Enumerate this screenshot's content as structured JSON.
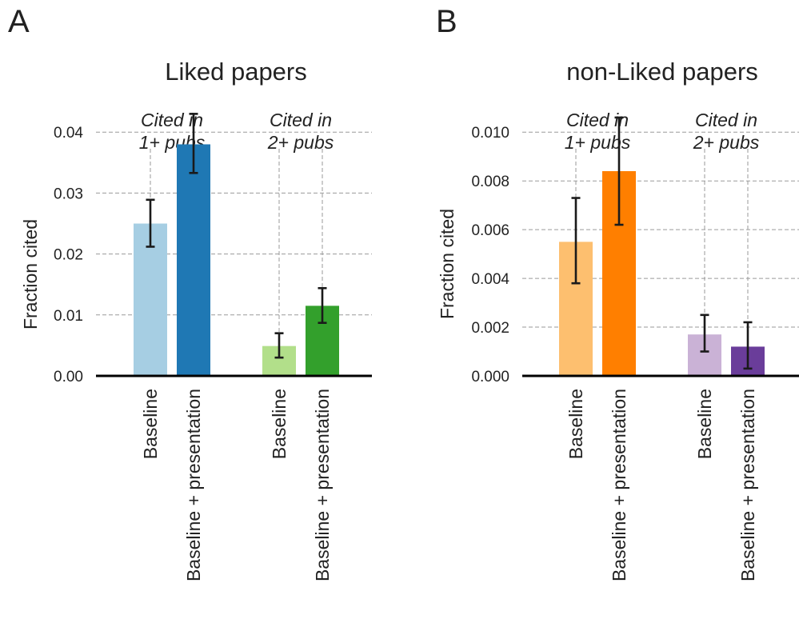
{
  "chart_data": [
    {
      "type": "bar",
      "panel_letter": "A",
      "title": "Liked papers",
      "ylabel": "Fraction cited",
      "ylim": [
        0,
        0.042
      ],
      "yticks": [
        0.0,
        0.01,
        0.02,
        0.03,
        0.04
      ],
      "ytick_labels": [
        "0.00",
        "0.01",
        "0.02",
        "0.03",
        "0.04"
      ],
      "grid": true,
      "groups": [
        {
          "label_line1": "Cited in",
          "label_line2": "1+ pubs",
          "bars": [
            {
              "category": "Baseline",
              "value": 0.025,
              "err_low": 0.0212,
              "err_high": 0.0289,
              "color": "#a6cee3"
            },
            {
              "category": "Baseline + presentation",
              "value": 0.038,
              "err_low": 0.0333,
              "err_high": 0.043,
              "color": "#1f78b4"
            }
          ]
        },
        {
          "label_line1": "Cited in",
          "label_line2": "2+ pubs",
          "bars": [
            {
              "category": "Baseline",
              "value": 0.0049,
              "err_low": 0.003,
              "err_high": 0.007,
              "color": "#b2df8a"
            },
            {
              "category": "Baseline + presentation",
              "value": 0.0115,
              "err_low": 0.0087,
              "err_high": 0.0144,
              "color": "#33a02c"
            }
          ]
        }
      ]
    },
    {
      "type": "bar",
      "panel_letter": "B",
      "title": "non-Liked papers",
      "ylabel": "Fraction cited",
      "ylim": [
        0,
        0.0105
      ],
      "yticks": [
        0.0,
        0.002,
        0.004,
        0.006,
        0.008,
        0.01
      ],
      "ytick_labels": [
        "0.000",
        "0.002",
        "0.004",
        "0.006",
        "0.008",
        "0.010"
      ],
      "grid": true,
      "groups": [
        {
          "label_line1": "Cited in",
          "label_line2": "1+ pubs",
          "bars": [
            {
              "category": "Baseline",
              "value": 0.0055,
              "err_low": 0.0038,
              "err_high": 0.0073,
              "color": "#fdbf6f"
            },
            {
              "category": "Baseline + presentation",
              "value": 0.0084,
              "err_low": 0.0062,
              "err_high": 0.0106,
              "color": "#ff7f00"
            }
          ]
        },
        {
          "label_line1": "Cited in",
          "label_line2": "2+ pubs",
          "bars": [
            {
              "category": "Baseline",
              "value": 0.0017,
              "err_low": 0.001,
              "err_high": 0.0025,
              "color": "#cab2d6"
            },
            {
              "category": "Baseline + presentation",
              "value": 0.0012,
              "err_low": 0.0003,
              "err_high": 0.0022,
              "color": "#6a3d9a"
            }
          ]
        }
      ]
    }
  ]
}
